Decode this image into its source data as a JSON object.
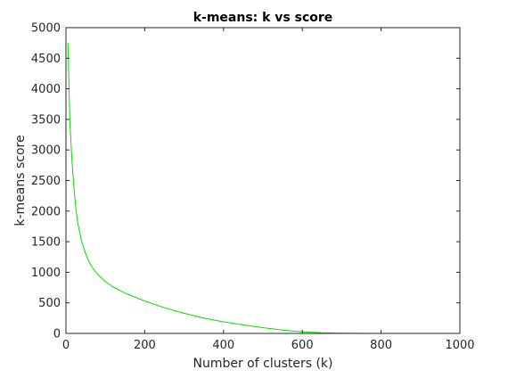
{
  "chart_data": {
    "type": "line",
    "title": "k-means: k vs score",
    "xlabel": "Number of clusters (k)",
    "ylabel": "k-means score",
    "xlim": [
      0,
      1000
    ],
    "ylim": [
      0,
      5000
    ],
    "xticks": [
      0,
      200,
      400,
      600,
      800,
      1000
    ],
    "yticks": [
      0,
      500,
      1000,
      1500,
      2000,
      2500,
      3000,
      3500,
      4000,
      4500,
      5000
    ],
    "grid": false,
    "legend": "none",
    "series": [
      {
        "color": "#00e000",
        "x": [
          5,
          10,
          15,
          20,
          25,
          30,
          40,
          50,
          60,
          70,
          80,
          100,
          120,
          150,
          200,
          250,
          300,
          350,
          400,
          450,
          500,
          550,
          600,
          650,
          700,
          750,
          800,
          850,
          900,
          950,
          1000
        ],
        "y": [
          4750,
          3450,
          2850,
          2400,
          2050,
          1800,
          1500,
          1300,
          1150,
          1050,
          970,
          850,
          760,
          660,
          530,
          420,
          330,
          250,
          190,
          140,
          95,
          55,
          25,
          10,
          3,
          1,
          0,
          0,
          0,
          0,
          0
        ]
      }
    ]
  }
}
